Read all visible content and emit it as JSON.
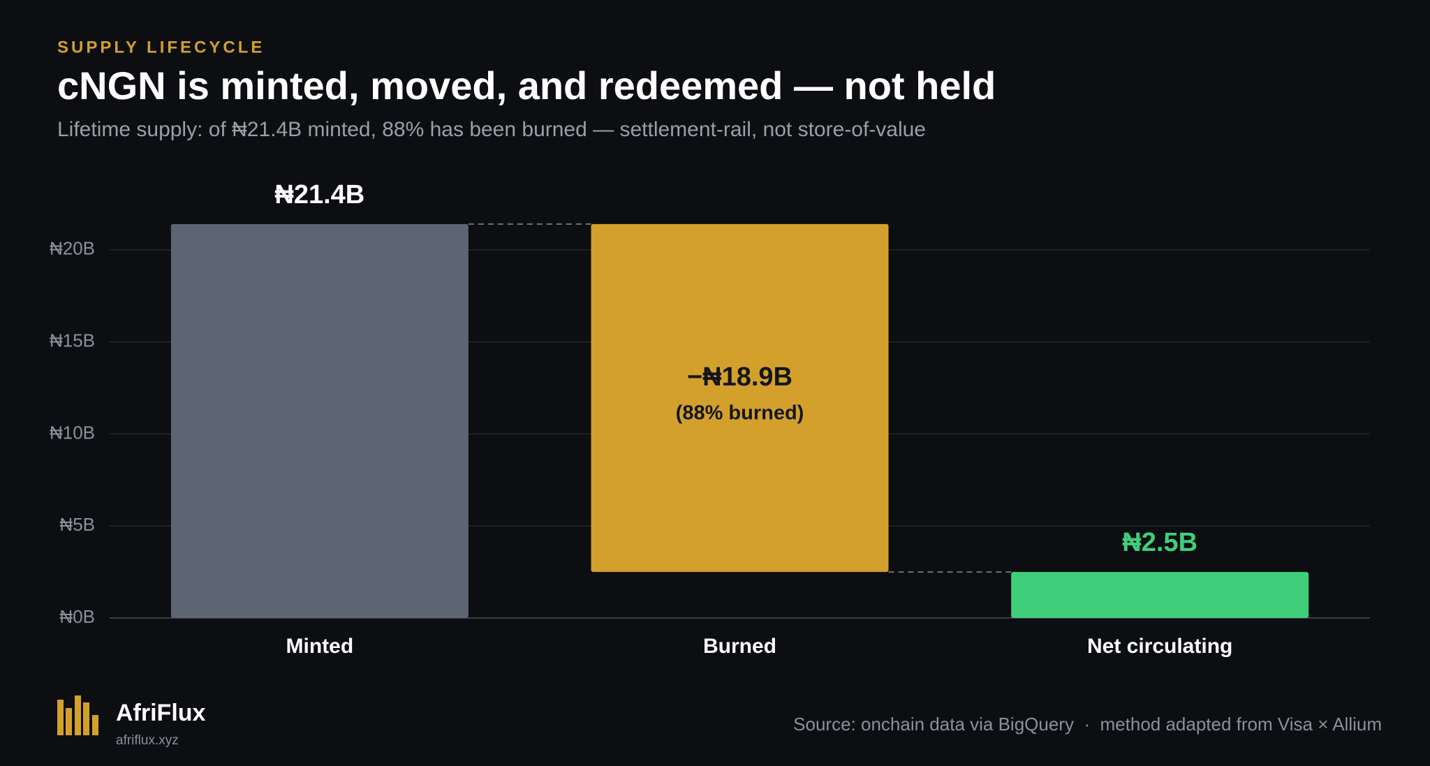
{
  "chart_data": {
    "type": "waterfall",
    "eyebrow": "SUPPLY LIFECYCLE",
    "title": "cNGN is minted, moved, and redeemed — not held",
    "subtitle": "Lifetime supply: of ₦21.4B minted, 88% has been burned — settlement-rail, not store-of-value",
    "categories": [
      "Minted",
      "Burned",
      "Net circulating"
    ],
    "values": [
      21.4,
      -18.9,
      2.5
    ],
    "value_labels": [
      "₦21.4B",
      "−₦18.9B",
      "₦2.5B"
    ],
    "measure": [
      "absolute",
      "relative",
      "total"
    ],
    "colors": [
      "#5d6572",
      "#d4a02c",
      "#3fcf7a"
    ],
    "annotations": [
      {
        "text": "(88% burned)",
        "category": 1
      }
    ],
    "ylim": [
      0,
      25
    ],
    "yticks": [
      {
        "value": 0,
        "label": "₦0B"
      },
      {
        "value": 5,
        "label": "₦5B"
      },
      {
        "value": 10,
        "label": "₦10B"
      },
      {
        "value": 15,
        "label": "₦15B"
      },
      {
        "value": 20,
        "label": "₦20B"
      }
    ],
    "grid": true,
    "connectors": true
  },
  "footer": {
    "brand": "AfriFlux",
    "url": "afriflux.xyz",
    "source": "Source: onchain data via BigQuery  ·  method adapted from Visa × Allium"
  }
}
